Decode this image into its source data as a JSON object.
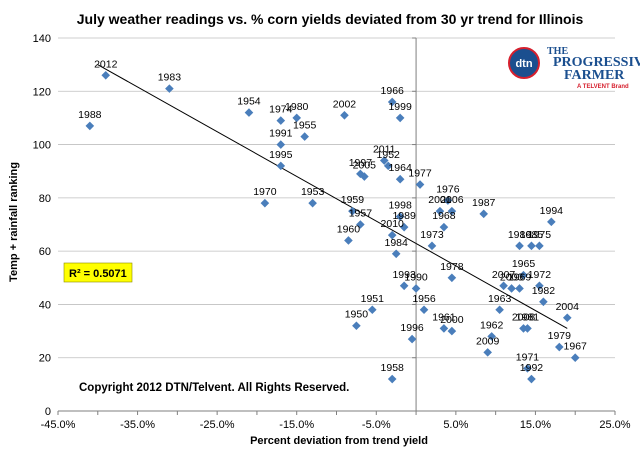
{
  "chart_data": {
    "type": "scatter",
    "title": "July weather readings vs. % corn yields deviated from 30 yr trend for Illinois",
    "xlabel": "Percent deviation from trend yield",
    "ylabel": "Temp + rainfall ranking",
    "xlim": [
      -0.45,
      0.25
    ],
    "ylim": [
      0,
      140
    ],
    "x_ticks": [
      "-45.0%",
      "-35.0%",
      "-25.0%",
      "-15.0%",
      "-5.0%",
      "5.0%",
      "15.0%",
      "25.0%"
    ],
    "y_ticks": [
      "0",
      "20",
      "40",
      "60",
      "80",
      "100",
      "120",
      "140"
    ],
    "grid": "y",
    "marker_color": "#4a7ebb",
    "trendline": {
      "x": [
        -0.4,
        0.19
      ],
      "y": [
        130,
        31
      ]
    },
    "r_squared_label": "R² = 0.5071",
    "copyright": "Copyright 2012 DTN/Telvent. All Rights Reserved.",
    "logo": {
      "badge": "dtn",
      "line1": "THE",
      "line2": "PROGRESSIVE",
      "line3": "FARMER",
      "line4": "A TELVENT Brand"
    },
    "points": [
      {
        "year": "2012",
        "x": -0.39,
        "y": 126
      },
      {
        "year": "1988",
        "x": -0.41,
        "y": 107
      },
      {
        "year": "1983",
        "x": -0.31,
        "y": 121
      },
      {
        "year": "1954",
        "x": -0.21,
        "y": 112
      },
      {
        "year": "1974",
        "x": -0.17,
        "y": 109
      },
      {
        "year": "1980",
        "x": -0.15,
        "y": 110
      },
      {
        "year": "1991",
        "x": -0.17,
        "y": 100
      },
      {
        "year": "1955",
        "x": -0.14,
        "y": 103
      },
      {
        "year": "1995",
        "x": -0.17,
        "y": 92
      },
      {
        "year": "1970",
        "x": -0.19,
        "y": 78
      },
      {
        "year": "1953",
        "x": -0.13,
        "y": 78
      },
      {
        "year": "2002",
        "x": -0.09,
        "y": 111
      },
      {
        "year": "1966",
        "x": -0.03,
        "y": 116
      },
      {
        "year": "1999",
        "x": -0.02,
        "y": 110
      },
      {
        "year": "2011",
        "x": -0.04,
        "y": 94
      },
      {
        "year": "1952",
        "x": -0.035,
        "y": 92
      },
      {
        "year": "1997",
        "x": -0.07,
        "y": 89
      },
      {
        "year": "2005",
        "x": -0.065,
        "y": 88
      },
      {
        "year": "1964",
        "x": -0.02,
        "y": 87
      },
      {
        "year": "1977",
        "x": 0.005,
        "y": 85
      },
      {
        "year": "1959",
        "x": -0.08,
        "y": 75
      },
      {
        "year": "1957",
        "x": -0.07,
        "y": 70
      },
      {
        "year": "1960",
        "x": -0.085,
        "y": 64
      },
      {
        "year": "1976",
        "x": 0.04,
        "y": 79
      },
      {
        "year": "2001",
        "x": 0.03,
        "y": 75
      },
      {
        "year": "2006",
        "x": 0.045,
        "y": 75
      },
      {
        "year": "1987",
        "x": 0.085,
        "y": 74
      },
      {
        "year": "1998",
        "x": -0.02,
        "y": 73
      },
      {
        "year": "1989",
        "x": -0.015,
        "y": 69
      },
      {
        "year": "2010",
        "x": -0.03,
        "y": 66
      },
      {
        "year": "1968",
        "x": 0.035,
        "y": 69
      },
      {
        "year": "1984",
        "x": -0.025,
        "y": 59
      },
      {
        "year": "1973",
        "x": 0.02,
        "y": 62
      },
      {
        "year": "1978",
        "x": 0.045,
        "y": 50
      },
      {
        "year": "1994",
        "x": 0.17,
        "y": 71
      },
      {
        "year": "1986",
        "x": 0.13,
        "y": 62
      },
      {
        "year": "1985",
        "x": 0.145,
        "y": 62
      },
      {
        "year": "1975",
        "x": 0.155,
        "y": 62
      },
      {
        "year": "1993",
        "x": -0.015,
        "y": 47
      },
      {
        "year": "1990",
        "x": 0.0,
        "y": 46
      },
      {
        "year": "1951",
        "x": -0.055,
        "y": 38
      },
      {
        "year": "1956",
        "x": 0.01,
        "y": 38
      },
      {
        "year": "1950",
        "x": -0.075,
        "y": 32
      },
      {
        "year": "1961",
        "x": 0.035,
        "y": 31
      },
      {
        "year": "1996",
        "x": -0.005,
        "y": 27
      },
      {
        "year": "2000",
        "x": 0.045,
        "y": 30
      },
      {
        "year": "2007",
        "x": 0.11,
        "y": 47
      },
      {
        "year": "1965",
        "x": 0.135,
        "y": 51
      },
      {
        "year": "1969",
        "x": 0.13,
        "y": 46
      },
      {
        "year": "1972",
        "x": 0.155,
        "y": 47
      },
      {
        "year": "2003",
        "x": 0.12,
        "y": 46
      },
      {
        "year": "1982",
        "x": 0.16,
        "y": 41
      },
      {
        "year": "1963",
        "x": 0.105,
        "y": 38
      },
      {
        "year": "2004",
        "x": 0.19,
        "y": 35
      },
      {
        "year": "2008",
        "x": 0.135,
        "y": 31
      },
      {
        "year": "1981",
        "x": 0.14,
        "y": 31
      },
      {
        "year": "1962",
        "x": 0.095,
        "y": 28
      },
      {
        "year": "2009",
        "x": 0.09,
        "y": 22
      },
      {
        "year": "1979",
        "x": 0.18,
        "y": 24
      },
      {
        "year": "1967",
        "x": 0.2,
        "y": 20
      },
      {
        "year": "1971",
        "x": 0.14,
        "y": 16
      },
      {
        "year": "1992",
        "x": 0.145,
        "y": 12
      },
      {
        "year": "1958",
        "x": -0.03,
        "y": 12
      }
    ]
  }
}
